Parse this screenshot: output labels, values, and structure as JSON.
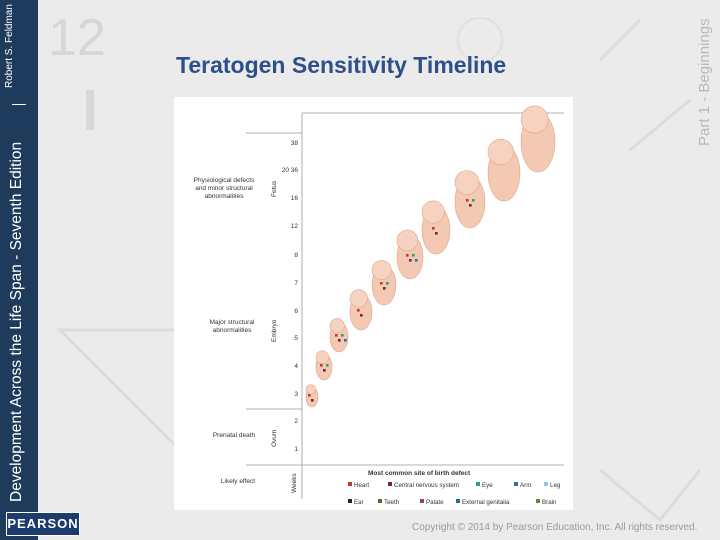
{
  "slide": {
    "title": "Teratogen Sensitivity Timeline",
    "series_title": "Development Across the Life Span - Seventh Edition",
    "author": "Robert S. Feldman",
    "part_label": "Part 1 - Beginnings",
    "publisher": "PEARSON",
    "copyright": "Copyright © 2014 by Pearson Education, Inc. All rights reserved.",
    "chapter_number": "12"
  },
  "figure": {
    "axis_header": "Weeks",
    "effect_header": "Likely effect",
    "periods": [
      {
        "name": "Fetus",
        "effect": [
          "Physiological defects",
          "and minor structural",
          "abnormalities"
        ]
      },
      {
        "name": "Embryo",
        "effect": [
          "Major structural",
          "abnormalities"
        ]
      },
      {
        "name": "Ovum",
        "effect": [
          "Prenatal death"
        ]
      }
    ],
    "week_labels": [
      "38",
      "20 36",
      "16",
      "12",
      "8",
      "7",
      "6",
      "5",
      "4",
      "3",
      "2",
      "1"
    ],
    "legend_title": "Most common site of birth defect",
    "legend": [
      {
        "label": "Heart",
        "color": "#c0392b"
      },
      {
        "label": "Central nervous system",
        "color": "#7a1f3d"
      },
      {
        "label": "Eye",
        "color": "#2e9e6b"
      },
      {
        "label": "Arm",
        "color": "#2a6fb0"
      },
      {
        "label": "Leg",
        "color": "#8fc6e6"
      },
      {
        "label": "Ear",
        "color": "#222222"
      },
      {
        "label": "Teeth",
        "color": "#6b5a3a"
      },
      {
        "label": "Palate",
        "color": "#9b3b78"
      },
      {
        "label": "External genitalia",
        "color": "#1f6e8a"
      },
      {
        "label": "Brain",
        "color": "#5a8a3a"
      }
    ]
  }
}
